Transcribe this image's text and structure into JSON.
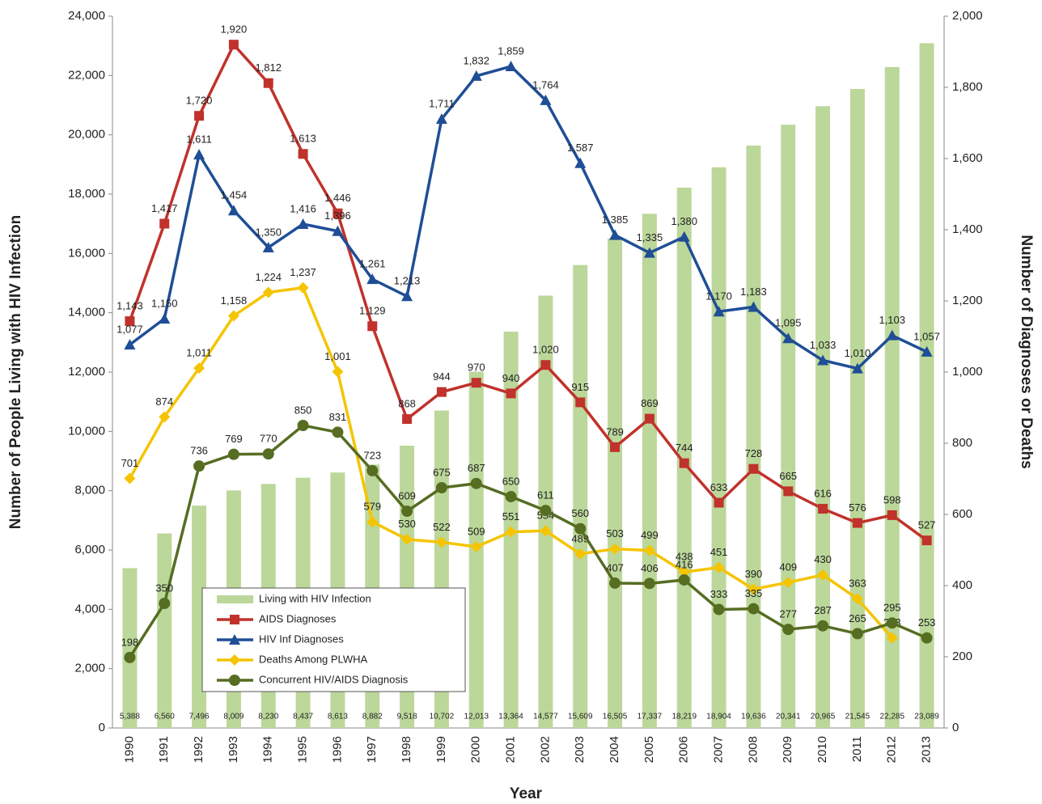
{
  "chart_data": {
    "type": "combo",
    "x_label": "Year",
    "y_label": "Number of People Living with HIV Infection",
    "y2_label": "Number of Diagnoses or Deaths",
    "categories": [
      "1990",
      "1991",
      "1992",
      "1993",
      "1994",
      "1995",
      "1996",
      "1997",
      "1998",
      "1999",
      "2000",
      "2001",
      "2002",
      "2003",
      "2004",
      "2005",
      "2006",
      "2007",
      "2008",
      "2009",
      "2010",
      "2011",
      "2012",
      "2013"
    ],
    "ylim": [
      0,
      24000
    ],
    "yticks": [
      0,
      {
        "value": 2000,
        "label": "2,000"
      },
      {
        "value": 4000,
        "label": "4,000"
      },
      {
        "value": 6000,
        "label": "6,000"
      },
      {
        "value": 8000,
        "label": "8,000"
      },
      {
        "value": 10000,
        "label": "10,000"
      },
      {
        "value": 12000,
        "label": "12,000"
      },
      {
        "value": 14000,
        "label": "14,000"
      },
      {
        "value": 16000,
        "label": "16,000"
      },
      {
        "value": 18000,
        "label": "18,000"
      },
      {
        "value": 20000,
        "label": "20,000"
      },
      {
        "value": 22000,
        "label": "22,000"
      },
      {
        "value": 24000,
        "label": "24,000"
      }
    ],
    "y2lim": [
      0,
      2000
    ],
    "y2ticks": [
      0,
      200,
      400,
      600,
      800,
      {
        "value": 1000,
        "label": "1,000"
      },
      {
        "value": 1200,
        "label": "1,200"
      },
      {
        "value": 1400,
        "label": "1,400"
      },
      {
        "value": 1600,
        "label": "1,600"
      },
      {
        "value": 1800,
        "label": "1,800"
      },
      {
        "value": 2000,
        "label": "2,000"
      }
    ],
    "legend": "lower-left",
    "series": [
      {
        "name": "Living with HIV Infection",
        "type": "bar",
        "color": "#bcd79a",
        "values": [
          5388,
          6560,
          7496,
          8009,
          8230,
          8437,
          8613,
          8882,
          9518,
          10702,
          12013,
          13364,
          14577,
          15609,
          16505,
          17337,
          18219,
          18904,
          19636,
          20341,
          20965,
          21545,
          22285,
          23089
        ],
        "value_labels": [
          "5,388",
          "6,560",
          "7,496",
          "8,009",
          "8,230",
          "8,437",
          "8,613",
          "8,882",
          "9,518",
          "10,702",
          "12,013",
          "13,364",
          "14,577",
          "15,609",
          "16,505",
          "17,337",
          "18,219",
          "18,904",
          "19,636",
          "20,341",
          "20,965",
          "21,545",
          "22,285",
          "23,089"
        ]
      },
      {
        "name": "AIDS Diagnoses",
        "type": "line",
        "axis": "y2",
        "color": "#c0322b",
        "marker": "square",
        "values": [
          1143,
          1417,
          1720,
          1920,
          1812,
          1613,
          1446,
          1129,
          868,
          944,
          970,
          940,
          1020,
          915,
          789,
          869,
          744,
          633,
          728,
          665,
          616,
          576,
          598,
          527
        ],
        "value_labels": [
          "1,143",
          "1,417",
          "1,720",
          "1,920",
          "1,812",
          "1,613",
          "1,446",
          "1,129",
          "868",
          "944",
          "970",
          "940",
          "1,020",
          "915",
          "789",
          "869",
          "744",
          "633",
          "728",
          "665",
          "616",
          "576",
          "598",
          "527"
        ]
      },
      {
        "name": "HIV Inf Diagnoses",
        "type": "line",
        "axis": "y2",
        "color": "#1f4e96",
        "marker": "triangle",
        "values": [
          1077,
          1150,
          1611,
          1454,
          1350,
          1416,
          1396,
          1261,
          1213,
          1711,
          1832,
          1859,
          1764,
          1587,
          1385,
          1335,
          1380,
          1170,
          1183,
          1095,
          1033,
          1010,
          1103,
          1057
        ],
        "value_labels": [
          "1,077",
          "1,150",
          "1,611",
          "1,454",
          "1,350",
          "1,416",
          "1,396",
          "1,261",
          "1,213",
          "1,711",
          "1,832",
          "1,859",
          "1,764",
          "1,587",
          "1,385",
          "1,335",
          "1,380",
          "1,170",
          "1,183",
          "1,095",
          "1,033",
          "1,010",
          "1,103",
          "1,057"
        ]
      },
      {
        "name": "Deaths Among PLWHA",
        "type": "line",
        "axis": "y2",
        "color": "#f5c400",
        "marker": "diamond",
        "values": [
          701,
          874,
          1011,
          1158,
          1224,
          1237,
          1001,
          579,
          530,
          522,
          509,
          551,
          554,
          489,
          503,
          499,
          438,
          451,
          390,
          409,
          430,
          363,
          253,
          null
        ],
        "value_labels": [
          "701",
          "874",
          "1,011",
          "1,158",
          "1,224",
          "1,237",
          "1,001",
          "579",
          "530",
          "522",
          "509",
          "551",
          "554",
          "489",
          "503",
          "499",
          "438",
          "451",
          "390",
          "409",
          "430",
          "363",
          "253",
          null
        ]
      },
      {
        "name": "Concurrent HIV/AIDS Diagnosis",
        "type": "line",
        "axis": "y2",
        "color": "#566d22",
        "marker": "circle",
        "values": [
          198,
          350,
          736,
          769,
          770,
          850,
          831,
          723,
          609,
          675,
          687,
          650,
          611,
          560,
          407,
          406,
          416,
          333,
          335,
          277,
          287,
          265,
          295,
          253
        ]
      }
    ]
  }
}
